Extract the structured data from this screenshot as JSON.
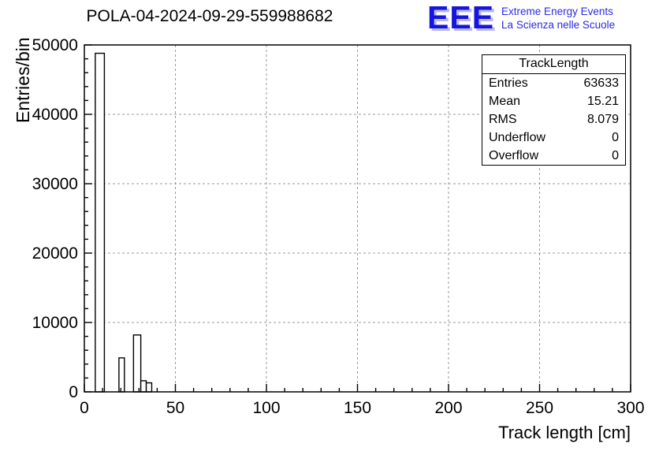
{
  "title": "POLA-04-2024-09-29-559988682",
  "logo": {
    "text": "EEE",
    "line1": "Extreme Energy Events",
    "line2": "La Scienza nelle Scuole",
    "color": "#1515dd",
    "line_color": "#2a2ae6"
  },
  "stats": {
    "header": "TrackLength",
    "rows": [
      {
        "label": "Entries",
        "value": "63633"
      },
      {
        "label": "Mean",
        "value": "15.21"
      },
      {
        "label": "RMS",
        "value": "8.079"
      },
      {
        "label": "Underflow",
        "value": "0"
      },
      {
        "label": "Overflow",
        "value": "0"
      }
    ]
  },
  "chart_data": {
    "type": "bar",
    "title": "POLA-04-2024-09-29-559988682",
    "xlabel": "Track length [cm]",
    "ylabel": "Entries/bin",
    "xlim": [
      0,
      300
    ],
    "ylim": [
      0,
      50000
    ],
    "x_ticks": [
      0,
      50,
      100,
      150,
      200,
      250,
      300
    ],
    "x_minor_step": 10,
    "y_ticks": [
      0,
      10000,
      20000,
      30000,
      40000,
      50000
    ],
    "y_minor_step": 2000,
    "grid": "dashed",
    "grid_color": "#9a9a9a",
    "frame_color": "#000000",
    "bar_style": {
      "fill": "#ffffff",
      "stroke": "#000000"
    },
    "bars": [
      {
        "x0": 6,
        "x1": 11,
        "y": 48800
      },
      {
        "x0": 19,
        "x1": 22,
        "y": 4900
      },
      {
        "x0": 27,
        "x1": 31,
        "y": 8200
      },
      {
        "x0": 31,
        "x1": 34,
        "y": 1600
      },
      {
        "x0": 34,
        "x1": 37,
        "y": 1300
      }
    ]
  }
}
